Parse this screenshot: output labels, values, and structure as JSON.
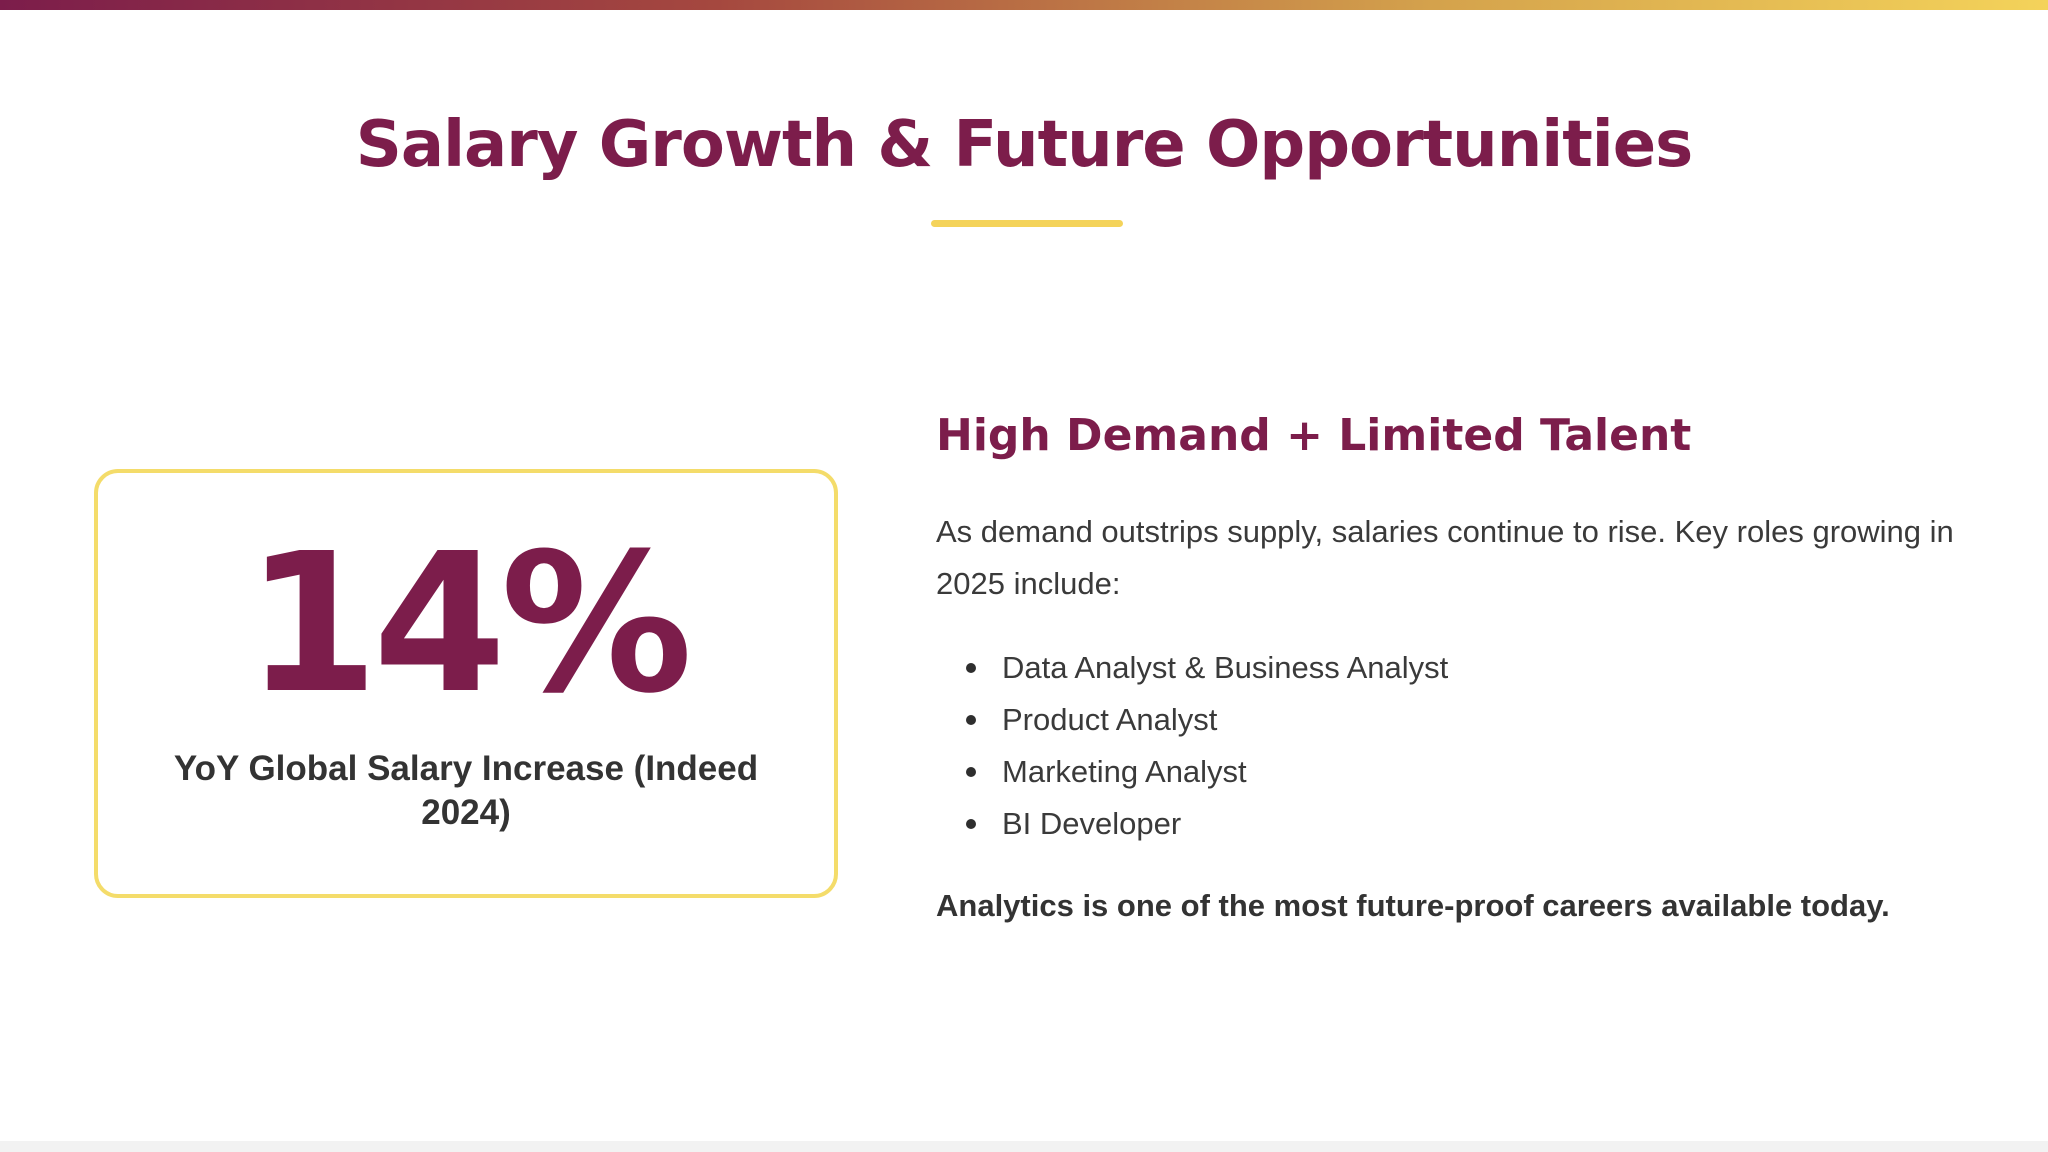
{
  "slide": {
    "title": "Salary Growth & Future Opportunities",
    "stat_card": {
      "value": "14%",
      "label": "YoY Global Salary Increase (Indeed 2024)"
    },
    "section_heading": "High Demand + Limited Talent",
    "intro": "As demand outstrips supply, salaries continue to rise. Key roles growing in 2025 include:",
    "roles": [
      "Data Analyst & Business Analyst",
      "Product Analyst",
      "Marketing Analyst",
      "BI Developer"
    ],
    "closing": "Analytics is one of the most future-proof careers available today."
  },
  "colors": {
    "primary": "#7c1d4b",
    "accent": "#f4d35a",
    "card_border": "#f4dc6a",
    "text": "#3a3a3a",
    "gradient_start": "#7c1d4b",
    "gradient_end": "#f4d35a"
  }
}
